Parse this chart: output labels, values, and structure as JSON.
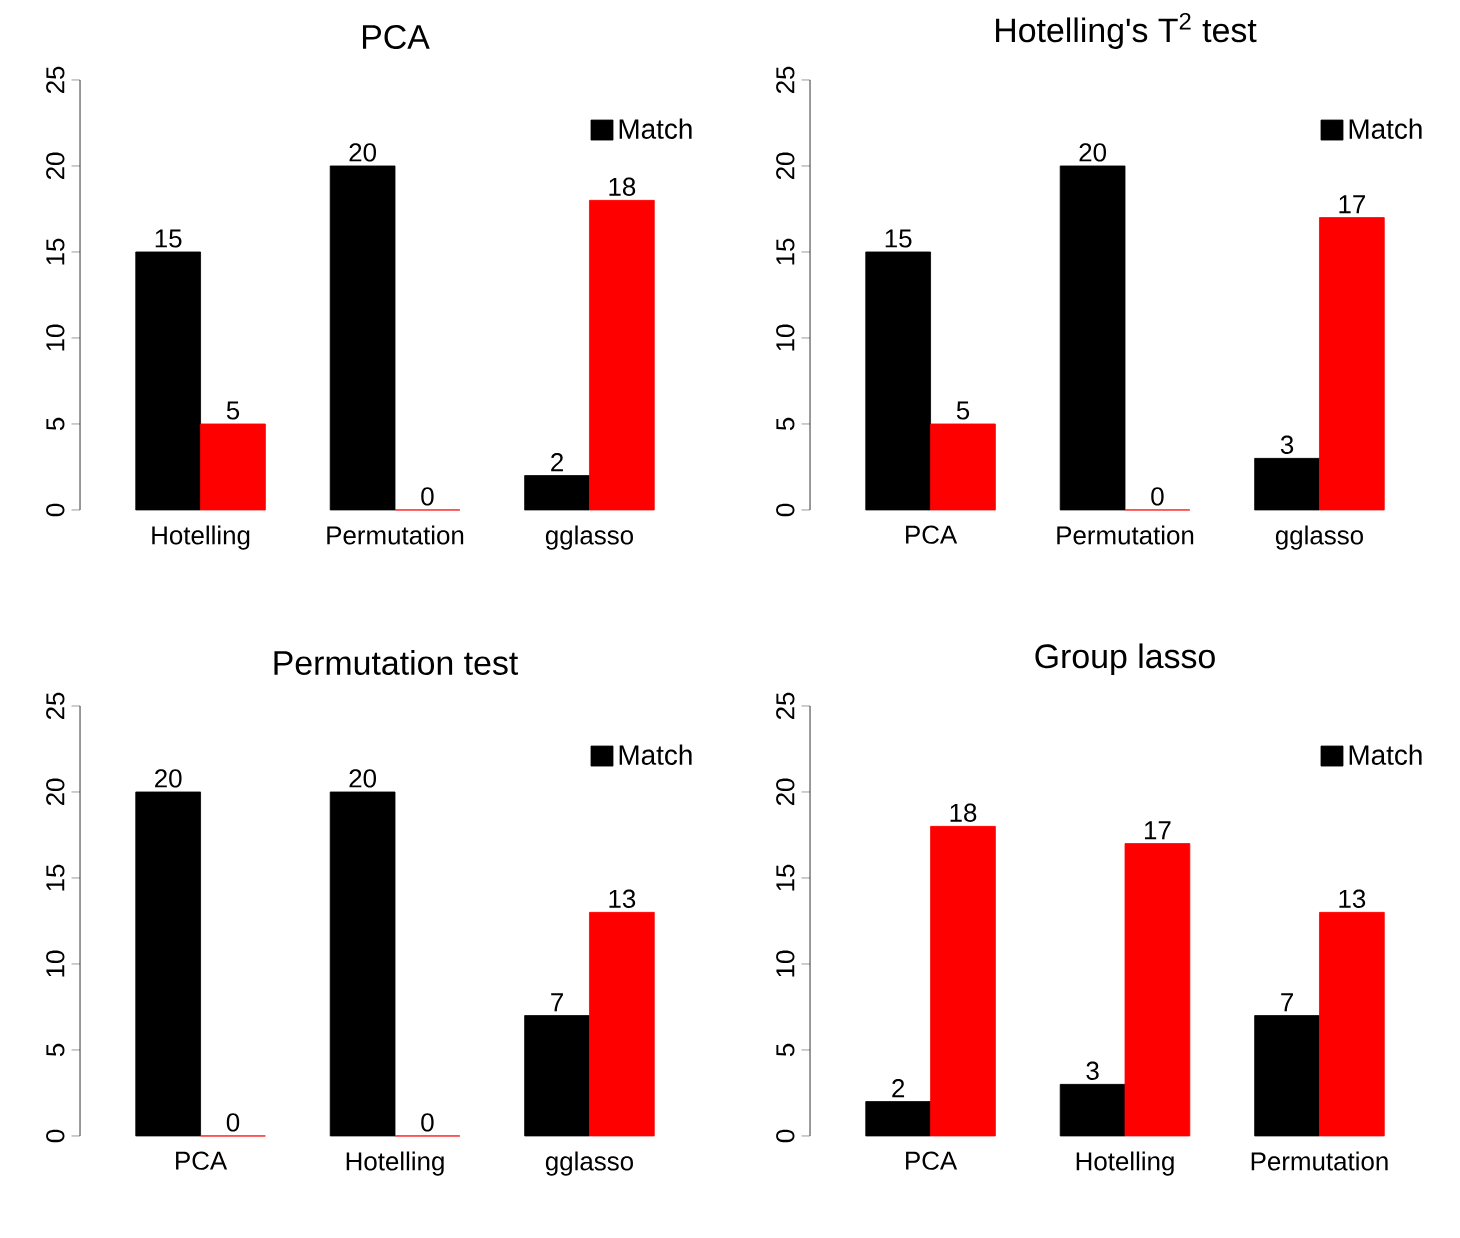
{
  "chart_data": [
    {
      "type": "bar",
      "title": "PCA",
      "categories": [
        "Hotelling",
        "Permutation",
        "gglasso"
      ],
      "series": [
        {
          "name": "Match",
          "color": "#000000",
          "values": [
            15,
            20,
            2
          ]
        },
        {
          "color": "#ff0000",
          "values": [
            5,
            0,
            18
          ]
        }
      ],
      "ylim": [
        0,
        25
      ],
      "yticks": [
        0,
        5,
        10,
        15,
        20,
        25
      ],
      "data_labels": true,
      "legend": "top right"
    },
    {
      "type": "bar",
      "title": "Hotelling's T$^{2}$ test",
      "categories": [
        "PCA",
        "Permutation",
        "gglasso"
      ],
      "series": [
        {
          "name": "Match",
          "color": "#000000",
          "values": [
            15,
            20,
            3
          ]
        },
        {
          "color": "#ff0000",
          "values": [
            5,
            0,
            17
          ]
        }
      ],
      "ylim": [
        0,
        25
      ],
      "yticks": [
        0,
        5,
        10,
        15,
        20,
        25
      ],
      "data_labels": true,
      "legend": "top right"
    },
    {
      "type": "bar",
      "title": "Permutation test",
      "categories": [
        "PCA",
        "Hotelling",
        "gglasso"
      ],
      "series": [
        {
          "name": "Match",
          "color": "#000000",
          "values": [
            20,
            20,
            7
          ]
        },
        {
          "color": "#ff0000",
          "values": [
            0,
            0,
            13
          ]
        }
      ],
      "ylim": [
        0,
        25
      ],
      "yticks": [
        0,
        5,
        10,
        15,
        20,
        25
      ],
      "data_labels": true,
      "legend": "top right"
    },
    {
      "type": "bar",
      "title": "Group lasso",
      "categories": [
        "PCA",
        "Hotelling",
        "Permutation"
      ],
      "series": [
        {
          "name": "Match",
          "color": "#000000",
          "values": [
            2,
            3,
            7
          ]
        },
        {
          "color": "#ff0000",
          "values": [
            18,
            17,
            13
          ]
        }
      ],
      "ylim": [
        0,
        25
      ],
      "yticks": [
        0,
        5,
        10,
        15,
        20,
        25
      ],
      "data_labels": true,
      "legend": "top right"
    }
  ]
}
